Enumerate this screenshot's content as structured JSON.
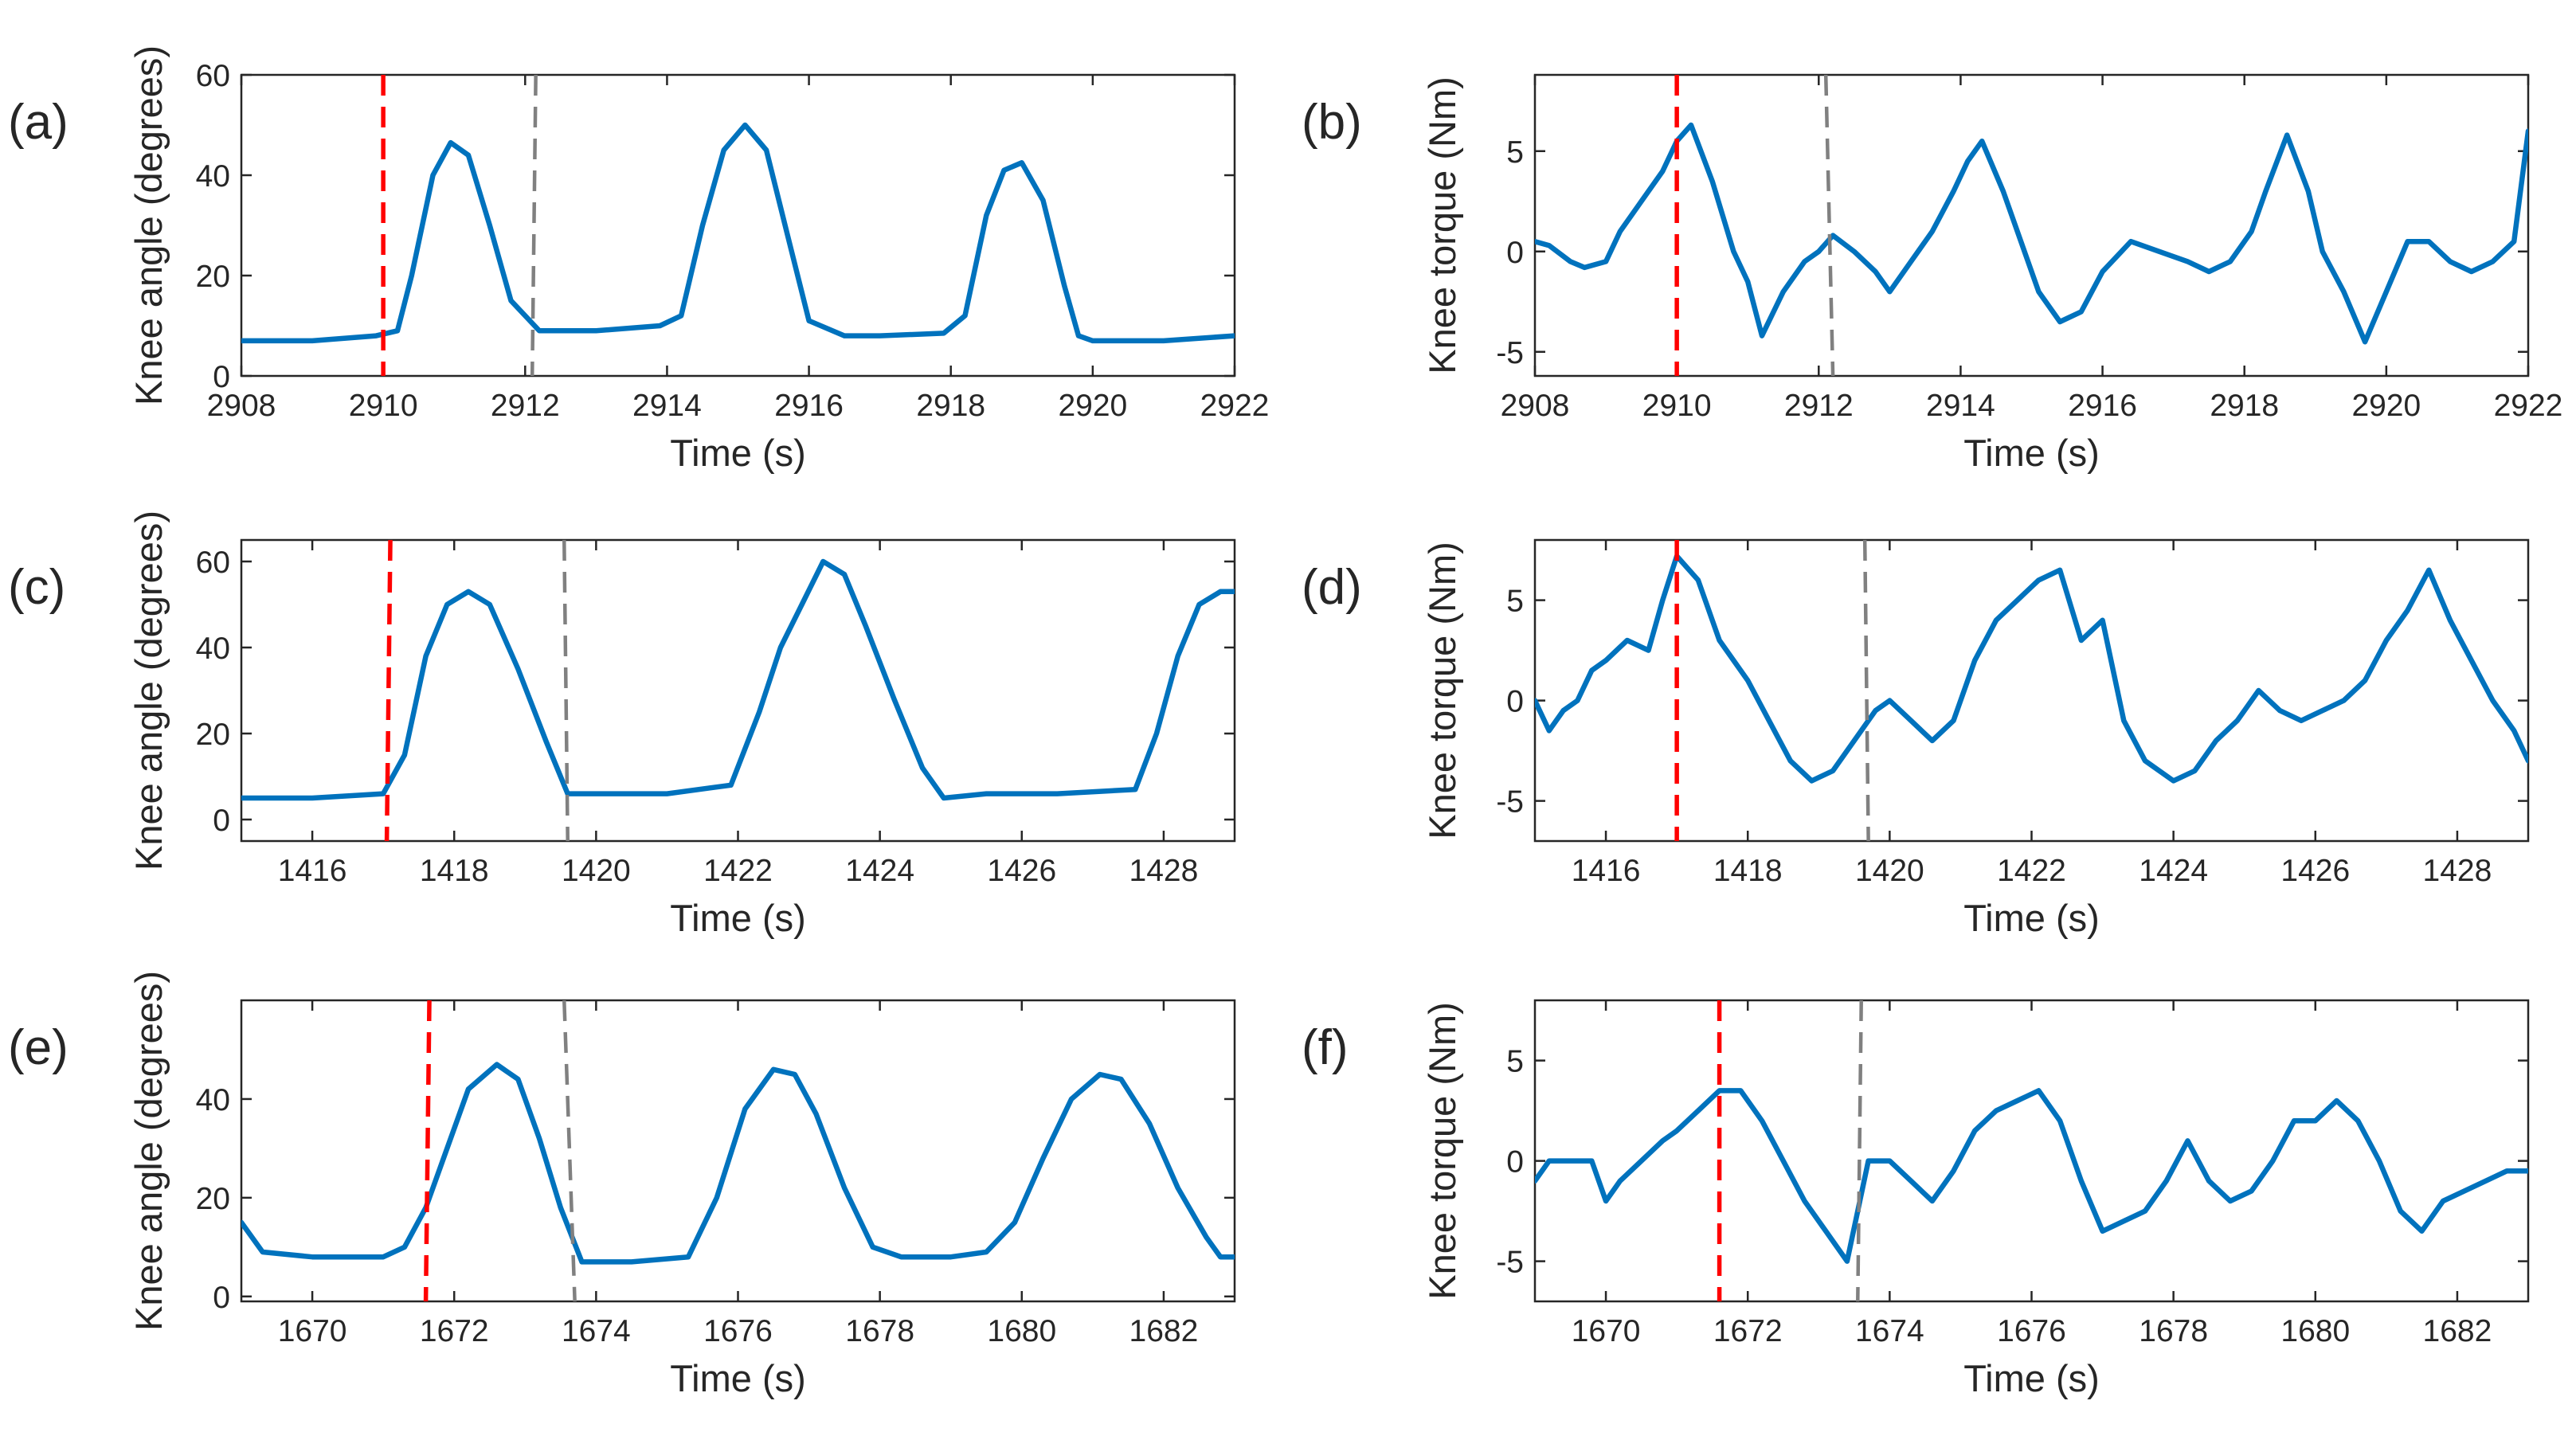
{
  "chart_data": [
    {
      "type": "line",
      "panel_label": "(a)",
      "xlabel": "Time (s)",
      "ylabel": "Knee angle (degrees)",
      "xlim": [
        2908,
        2922
      ],
      "ylim": [
        0,
        60
      ],
      "xticks": [
        2908,
        2910,
        2912,
        2914,
        2916,
        2918,
        2920,
        2922
      ],
      "yticks": [
        0,
        20,
        40,
        60
      ],
      "markers": {
        "red": [
          [
            2910,
            2910
          ]
        ],
        "gray": [
          [
            2912.15,
            2912.1
          ]
        ]
      },
      "series": [
        {
          "name": "Knee angle",
          "color": "#0072BD",
          "x": [
            2908,
            2909,
            2909.9,
            2910.2,
            2910.4,
            2910.7,
            2910.95,
            2911.2,
            2911.5,
            2911.8,
            2912.2,
            2913,
            2913.9,
            2914.2,
            2914.5,
            2914.8,
            2915.1,
            2915.4,
            2915.7,
            2916,
            2916.5,
            2917,
            2917.9,
            2918.2,
            2918.5,
            2918.75,
            2919,
            2919.3,
            2919.6,
            2919.8,
            2920,
            2921,
            2922
          ],
          "y": [
            7,
            7,
            8,
            9,
            20,
            40,
            46.5,
            44,
            30,
            15,
            9,
            9,
            10,
            12,
            30,
            45,
            50,
            45,
            28,
            11,
            8,
            8,
            8.5,
            12,
            32,
            41,
            42.5,
            35,
            18,
            8,
            7,
            7,
            8
          ]
        }
      ]
    },
    {
      "type": "line",
      "panel_label": "(b)",
      "xlabel": "Time (s)",
      "ylabel": "Knee torque (Nm)",
      "xlim": [
        2908,
        2922
      ],
      "ylim": [
        -6.2,
        8.8
      ],
      "xticks": [
        2908,
        2910,
        2912,
        2914,
        2916,
        2918,
        2920,
        2922
      ],
      "yticks": [
        -5,
        0,
        5
      ],
      "markers": {
        "red": [
          [
            2910,
            2910
          ]
        ],
        "gray": [
          [
            2912.1,
            2912.2
          ]
        ]
      },
      "series": [
        {
          "name": "Knee torque",
          "color": "#0072BD",
          "x": [
            2908,
            2908.2,
            2908.5,
            2908.7,
            2909,
            2909.2,
            2909.5,
            2909.8,
            2910,
            2910.2,
            2910.5,
            2910.8,
            2911,
            2911.2,
            2911.5,
            2911.8,
            2912,
            2912.2,
            2912.5,
            2912.8,
            2913,
            2913.3,
            2913.6,
            2913.9,
            2914.1,
            2914.3,
            2914.6,
            2914.9,
            2915.1,
            2915.4,
            2915.7,
            2916,
            2916.4,
            2916.8,
            2917.2,
            2917.5,
            2917.8,
            2918.1,
            2918.3,
            2918.6,
            2918.9,
            2919.1,
            2919.4,
            2919.7,
            2920,
            2920.3,
            2920.6,
            2920.9,
            2921.2,
            2921.5,
            2921.8,
            2922
          ],
          "y": [
            0.5,
            0.3,
            -0.5,
            -0.8,
            -0.5,
            1,
            2.5,
            4,
            5.5,
            6.3,
            3.5,
            0,
            -1.5,
            -4.2,
            -2,
            -0.5,
            0,
            0.8,
            0,
            -1,
            -2,
            -0.5,
            1,
            3,
            4.5,
            5.5,
            3,
            0,
            -2,
            -3.5,
            -3,
            -1,
            0.5,
            0,
            -0.5,
            -1,
            -0.5,
            1,
            3,
            5.8,
            3,
            0,
            -2,
            -4.5,
            -2,
            0.5,
            0.5,
            -0.5,
            -1,
            -0.5,
            0.5,
            6
          ]
        }
      ]
    },
    {
      "type": "line",
      "panel_label": "(c)",
      "xlabel": "Time (s)",
      "ylabel": "Knee angle (degrees)",
      "xlim": [
        1415,
        1429
      ],
      "ylim": [
        -5,
        65
      ],
      "xticks": [
        1416,
        1418,
        1420,
        1422,
        1424,
        1426,
        1428
      ],
      "yticks": [
        0,
        20,
        40,
        60
      ],
      "markers": {
        "red": [
          [
            1417.1,
            1417.05
          ]
        ],
        "gray": [
          [
            1419.55,
            1419.6
          ]
        ]
      },
      "series": [
        {
          "name": "Knee angle",
          "color": "#0072BD",
          "x": [
            1415,
            1416,
            1417,
            1417.3,
            1417.6,
            1417.9,
            1418.2,
            1418.5,
            1418.9,
            1419.3,
            1419.6,
            1420,
            1421,
            1421.9,
            1422.3,
            1422.6,
            1422.9,
            1423.2,
            1423.5,
            1423.8,
            1424.2,
            1424.6,
            1424.9,
            1425.5,
            1426.5,
            1427.6,
            1427.9,
            1428.2,
            1428.5,
            1428.8,
            1429
          ],
          "y": [
            5,
            5,
            6,
            15,
            38,
            50,
            53,
            50,
            35,
            18,
            6,
            6,
            6,
            8,
            25,
            40,
            50,
            60,
            57,
            45,
            28,
            12,
            5,
            6,
            6,
            7,
            20,
            38,
            50,
            53,
            53
          ]
        }
      ]
    },
    {
      "type": "line",
      "panel_label": "(d)",
      "xlabel": "Time (s)",
      "ylabel": "Knee torque (Nm)",
      "xlim": [
        1415,
        1429
      ],
      "ylim": [
        -7,
        8
      ],
      "xticks": [
        1416,
        1418,
        1420,
        1422,
        1424,
        1426,
        1428
      ],
      "yticks": [
        -5,
        0,
        5
      ],
      "markers": {
        "red": [
          [
            1417,
            1417
          ]
        ],
        "gray": [
          [
            1419.65,
            1419.7
          ]
        ]
      },
      "series": [
        {
          "name": "Knee torque",
          "color": "#0072BD",
          "x": [
            1415,
            1415.2,
            1415.4,
            1415.6,
            1415.8,
            1416,
            1416.3,
            1416.6,
            1416.8,
            1417,
            1417.3,
            1417.6,
            1418,
            1418.3,
            1418.6,
            1418.9,
            1419.2,
            1419.5,
            1419.8,
            1420,
            1420.3,
            1420.6,
            1420.9,
            1421.2,
            1421.5,
            1421.8,
            1422.1,
            1422.4,
            1422.7,
            1423,
            1423.3,
            1423.6,
            1424,
            1424.3,
            1424.6,
            1424.9,
            1425.2,
            1425.5,
            1425.8,
            1426.1,
            1426.4,
            1426.7,
            1427,
            1427.3,
            1427.6,
            1427.9,
            1428.2,
            1428.5,
            1428.8,
            1429
          ],
          "y": [
            0,
            -1.5,
            -0.5,
            0,
            1.5,
            2,
            3,
            2.5,
            5,
            7.2,
            6,
            3,
            1,
            -1,
            -3,
            -4,
            -3.5,
            -2,
            -0.5,
            0,
            -1,
            -2,
            -1,
            2,
            4,
            5,
            6,
            6.5,
            3,
            4,
            -1,
            -3,
            -4,
            -3.5,
            -2,
            -1,
            0.5,
            -0.5,
            -1,
            -0.5,
            0,
            1,
            3,
            4.5,
            6.5,
            4,
            2,
            0,
            -1.5,
            -3
          ]
        }
      ]
    },
    {
      "type": "line",
      "panel_label": "(e)",
      "xlabel": "Time (s)",
      "ylabel": "Knee angle (degrees)",
      "xlim": [
        1669,
        1683
      ],
      "ylim": [
        -1,
        60
      ],
      "xticks": [
        1670,
        1672,
        1674,
        1676,
        1678,
        1680,
        1682
      ],
      "yticks": [
        0,
        20,
        40
      ],
      "markers": {
        "red": [
          [
            1671.65,
            1671.6
          ]
        ],
        "gray": [
          [
            1673.55,
            1673.7
          ]
        ]
      },
      "series": [
        {
          "name": "Knee angle",
          "color": "#0072BD",
          "x": [
            1669,
            1669.3,
            1670,
            1671,
            1671.3,
            1671.6,
            1671.9,
            1672.2,
            1672.6,
            1672.9,
            1673.2,
            1673.5,
            1673.8,
            1674.5,
            1675.3,
            1675.7,
            1676.1,
            1676.5,
            1676.8,
            1677.1,
            1677.5,
            1677.9,
            1678.3,
            1679,
            1679.5,
            1679.9,
            1680.3,
            1680.7,
            1681.1,
            1681.4,
            1681.8,
            1682.2,
            1682.6,
            1682.8,
            1683
          ],
          "y": [
            15,
            9,
            8,
            8,
            10,
            18,
            30,
            42,
            47,
            44,
            32,
            18,
            7,
            7,
            8,
            20,
            38,
            46,
            45,
            37,
            22,
            10,
            8,
            8,
            9,
            15,
            28,
            40,
            45,
            44,
            35,
            22,
            12,
            8,
            8
          ]
        }
      ]
    },
    {
      "type": "line",
      "panel_label": "(f)",
      "xlabel": "Time (s)",
      "ylabel": "Knee torque (Nm)",
      "xlim": [
        1669,
        1683
      ],
      "ylim": [
        -7,
        8
      ],
      "xticks": [
        1670,
        1672,
        1674,
        1676,
        1678,
        1680,
        1682
      ],
      "yticks": [
        -5,
        0,
        5
      ],
      "markers": {
        "red": [
          [
            1671.6,
            1671.6
          ]
        ],
        "gray": [
          [
            1673.6,
            1673.55
          ]
        ]
      },
      "series": [
        {
          "name": "Knee torque",
          "color": "#0072BD",
          "x": [
            1669,
            1669.2,
            1669.4,
            1669.8,
            1670,
            1670.2,
            1670.5,
            1670.8,
            1671,
            1671.3,
            1671.6,
            1671.9,
            1672.2,
            1672.5,
            1672.8,
            1673.1,
            1673.4,
            1673.7,
            1674,
            1674.3,
            1674.6,
            1674.9,
            1675.2,
            1675.5,
            1675.8,
            1676.1,
            1676.4,
            1676.7,
            1677,
            1677.3,
            1677.6,
            1677.9,
            1678.2,
            1678.5,
            1678.8,
            1679.1,
            1679.4,
            1679.7,
            1680,
            1680.3,
            1680.6,
            1680.9,
            1681.2,
            1681.5,
            1681.8,
            1682.1,
            1682.4,
            1682.7,
            1683
          ],
          "y": [
            -1,
            0,
            0,
            0,
            -2,
            -1,
            0,
            1,
            1.5,
            2.5,
            3.5,
            3.5,
            2,
            0,
            -2,
            -3.5,
            -5,
            0,
            0,
            -1,
            -2,
            -0.5,
            1.5,
            2.5,
            3,
            3.5,
            2,
            -1,
            -3.5,
            -3,
            -2.5,
            -1,
            1,
            -1,
            -2,
            -1.5,
            0,
            2,
            2,
            3,
            2,
            0,
            -2.5,
            -3.5,
            -2,
            -1.5,
            -1,
            -0.5,
            -0.5
          ]
        }
      ]
    }
  ]
}
